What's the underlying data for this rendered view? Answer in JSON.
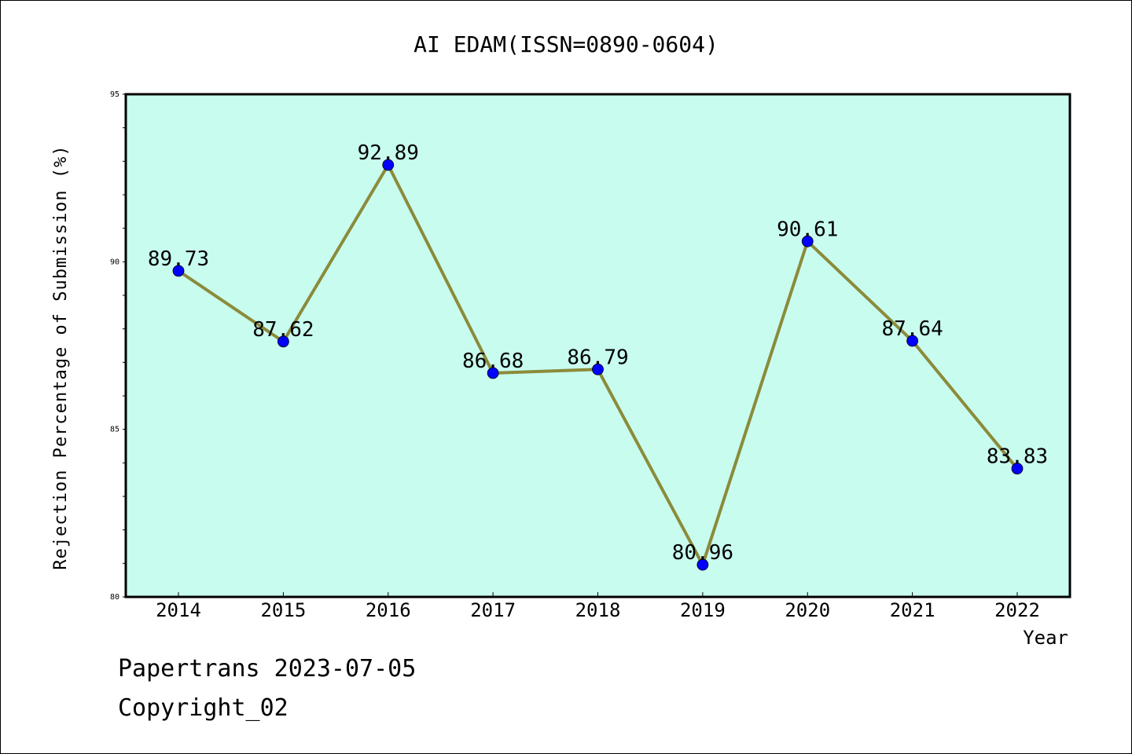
{
  "chart_data": {
    "type": "line",
    "title": "AI EDAM(ISSN=0890-0604)",
    "xlabel": "Year",
    "ylabel": "Rejection Percentage of Submission (%)",
    "categories": [
      "2014",
      "2015",
      "2016",
      "2017",
      "2018",
      "2019",
      "2020",
      "2021",
      "2022"
    ],
    "series": [
      {
        "values": [
          89.73,
          87.62,
          92.89,
          86.68,
          86.79,
          80.96,
          90.61,
          87.64,
          83.83
        ]
      }
    ],
    "data_labels": [
      "89.73",
      "87.62",
      "92.89",
      "86.68",
      "86.79",
      "80.96",
      "90.61",
      "87.64",
      "83.83"
    ],
    "ylim": [
      80,
      95
    ],
    "yticks": [
      80,
      85,
      90,
      95
    ],
    "grid": false,
    "plot_background": "#c8fcef",
    "line_color": "#8b8b3a",
    "marker_color": "#0000ff"
  },
  "footer": {
    "line1": "Papertrans 2023-07-05",
    "line2": "Copyright_02"
  }
}
